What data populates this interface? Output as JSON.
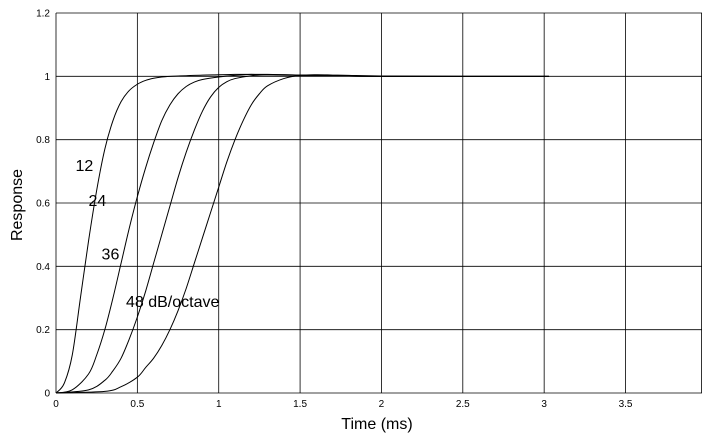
{
  "chart_data": {
    "type": "line",
    "title": "",
    "xlabel": "Time (ms)",
    "ylabel": "Response",
    "xlim": [
      0,
      4
    ],
    "ylim": [
      0,
      1.2
    ],
    "grid": true,
    "x_ticks": [
      "0",
      "0.5",
      "1",
      "1.5",
      "2",
      "2.5",
      "3",
      "3.5"
    ],
    "y_ticks": [
      "0",
      "0.2",
      "0.4",
      "0.6",
      "0.8",
      "1",
      "1.2"
    ],
    "series": [
      {
        "name": "12",
        "label_at": [
          0.12,
          0.72
        ],
        "x": [
          0,
          0.05,
          0.1,
          0.15,
          0.2,
          0.25,
          0.3,
          0.35,
          0.4,
          0.45,
          0.5,
          0.55,
          0.6,
          0.65,
          0.7,
          0.75,
          0.8,
          0.9,
          1.0,
          1.1,
          1.2,
          1.3,
          1.4,
          1.5,
          1.6,
          1.8,
          2.0,
          2.5,
          3.03
        ],
        "y": [
          0,
          0.03,
          0.12,
          0.3,
          0.48,
          0.64,
          0.77,
          0.86,
          0.92,
          0.955,
          0.975,
          0.987,
          0.994,
          0.998,
          1.0,
          1.001,
          1.002,
          1.004,
          1.005,
          1.006,
          1.006,
          1.005,
          1.004,
          1.003,
          1.002,
          1.001,
          1.0,
          1.0,
          1.0
        ]
      },
      {
        "name": "24",
        "label_at": [
          0.2,
          0.61
        ],
        "x": [
          0,
          0.1,
          0.2,
          0.25,
          0.3,
          0.35,
          0.4,
          0.45,
          0.5,
          0.55,
          0.6,
          0.65,
          0.7,
          0.75,
          0.8,
          0.85,
          0.9,
          1.0,
          1.1,
          1.2,
          1.3,
          1.4,
          1.5,
          1.6,
          1.8,
          2.0,
          2.5,
          3.03
        ],
        "y": [
          0,
          0.01,
          0.06,
          0.12,
          0.2,
          0.3,
          0.41,
          0.52,
          0.62,
          0.71,
          0.79,
          0.86,
          0.91,
          0.945,
          0.968,
          0.982,
          0.99,
          0.998,
          1.003,
          1.006,
          1.006,
          1.005,
          1.004,
          1.003,
          1.001,
          1.0,
          1.0,
          1.0
        ]
      },
      {
        "name": "36",
        "label_at": [
          0.28,
          0.44
        ],
        "x": [
          0,
          0.2,
          0.3,
          0.35,
          0.4,
          0.45,
          0.5,
          0.55,
          0.6,
          0.65,
          0.7,
          0.75,
          0.8,
          0.85,
          0.9,
          0.95,
          1.0,
          1.05,
          1.1,
          1.2,
          1.3,
          1.4,
          1.5,
          1.6,
          1.8,
          2.0,
          2.5,
          3.03
        ],
        "y": [
          0,
          0.01,
          0.04,
          0.07,
          0.11,
          0.17,
          0.24,
          0.32,
          0.41,
          0.5,
          0.59,
          0.68,
          0.76,
          0.83,
          0.89,
          0.935,
          0.965,
          0.983,
          0.993,
          1.002,
          1.005,
          1.005,
          1.004,
          1.003,
          1.001,
          1.0,
          1.0,
          1.0
        ]
      },
      {
        "name": "48 dB/octave",
        "label_at": [
          0.43,
          0.29
        ],
        "x": [
          0,
          0.3,
          0.4,
          0.5,
          0.55,
          0.6,
          0.65,
          0.7,
          0.75,
          0.8,
          0.85,
          0.9,
          0.95,
          1.0,
          1.05,
          1.1,
          1.15,
          1.2,
          1.25,
          1.3,
          1.4,
          1.5,
          1.6,
          1.7,
          1.8,
          2.0,
          2.5,
          3.03
        ],
        "y": [
          0,
          0.005,
          0.02,
          0.05,
          0.08,
          0.11,
          0.15,
          0.2,
          0.26,
          0.33,
          0.41,
          0.49,
          0.57,
          0.65,
          0.73,
          0.8,
          0.86,
          0.91,
          0.945,
          0.97,
          0.993,
          1.003,
          1.005,
          1.004,
          1.003,
          1.001,
          1.0,
          1.0
        ]
      }
    ]
  }
}
